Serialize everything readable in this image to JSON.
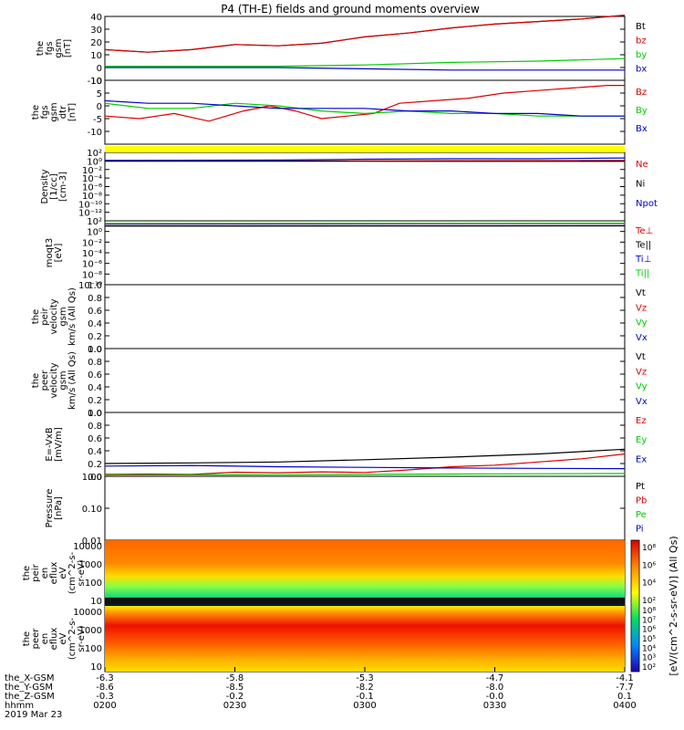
{
  "title": "P4 (TH-E) fields and ground moments overview",
  "colors": {
    "black": "#000000",
    "red": "#dd0000",
    "green": "#00cc00",
    "blue": "#0000cc",
    "yellow": "#ffff00"
  },
  "chart_data": [
    {
      "type": "line",
      "panel": "fgs_gsm",
      "ylabel": [
        "the",
        "fgs",
        "gsm",
        "[nT]"
      ],
      "ylim": [
        -10,
        40
      ],
      "yticks": [
        -10,
        0,
        10,
        20,
        30,
        40
      ],
      "series": [
        {
          "name": "Bt",
          "color": "#000000",
          "values": [
            [
              0,
              14
            ],
            [
              0.5,
              12
            ],
            [
              1,
              14
            ],
            [
              1.5,
              18
            ],
            [
              2,
              17
            ],
            [
              2.5,
              19
            ],
            [
              3,
              24
            ],
            [
              3.5,
              27
            ],
            [
              4,
              31
            ],
            [
              4.5,
              34
            ],
            [
              5,
              36
            ],
            [
              5.5,
              38
            ],
            [
              6,
              41
            ]
          ]
        },
        {
          "name": "bz",
          "color": "#dd0000",
          "values": [
            [
              0,
              14
            ],
            [
              0.5,
              12
            ],
            [
              1,
              14
            ],
            [
              1.5,
              18
            ],
            [
              2,
              17
            ],
            [
              2.5,
              19
            ],
            [
              3,
              24
            ],
            [
              3.5,
              27
            ],
            [
              4,
              31
            ],
            [
              4.5,
              34
            ],
            [
              5,
              36
            ],
            [
              5.5,
              38
            ],
            [
              6,
              41
            ]
          ]
        },
        {
          "name": "by",
          "color": "#00cc00",
          "values": [
            [
              0,
              1
            ],
            [
              1,
              1
            ],
            [
              2,
              1
            ],
            [
              3,
              2
            ],
            [
              4,
              4
            ],
            [
              5,
              5
            ],
            [
              6,
              7
            ]
          ]
        },
        {
          "name": "bx",
          "color": "#0000cc",
          "values": [
            [
              0,
              0
            ],
            [
              1,
              0
            ],
            [
              2,
              0
            ],
            [
              3,
              -1
            ],
            [
              4,
              -2
            ],
            [
              5,
              -2
            ],
            [
              6,
              -2
            ]
          ]
        }
      ]
    },
    {
      "type": "line",
      "panel": "fgs_gsm_detrended",
      "ylabel": [
        "the",
        "fgs",
        "gsm",
        "dtr",
        "[nT]"
      ],
      "ylim": [
        -15,
        10
      ],
      "yticks": [
        -10,
        -5,
        0,
        5,
        10
      ],
      "series": [
        {
          "name": "Bz",
          "color": "#dd0000",
          "values": [
            [
              0,
              -4
            ],
            [
              0.4,
              -5
            ],
            [
              0.8,
              -3
            ],
            [
              1.2,
              -6
            ],
            [
              1.6,
              -2
            ],
            [
              1.9,
              0
            ],
            [
              2.2,
              -2
            ],
            [
              2.5,
              -5
            ],
            [
              2.8,
              -4
            ],
            [
              3.1,
              -3
            ],
            [
              3.4,
              1
            ],
            [
              3.8,
              2
            ],
            [
              4.2,
              3
            ],
            [
              4.6,
              5
            ],
            [
              5.0,
              6
            ],
            [
              5.4,
              7
            ],
            [
              5.8,
              8
            ],
            [
              6,
              8
            ]
          ]
        },
        {
          "name": "By",
          "color": "#00cc00",
          "values": [
            [
              0,
              1
            ],
            [
              0.5,
              -1
            ],
            [
              1,
              -1
            ],
            [
              1.5,
              1
            ],
            [
              2,
              0
            ],
            [
              2.5,
              -2
            ],
            [
              3,
              -3
            ],
            [
              3.5,
              -2
            ],
            [
              4,
              -3
            ],
            [
              4.5,
              -3
            ],
            [
              5,
              -4
            ],
            [
              5.5,
              -4
            ],
            [
              6,
              -4
            ]
          ]
        },
        {
          "name": "Bx",
          "color": "#0000cc",
          "values": [
            [
              0,
              2
            ],
            [
              0.5,
              1
            ],
            [
              1,
              1
            ],
            [
              1.5,
              0
            ],
            [
              2,
              -1
            ],
            [
              2.5,
              -1
            ],
            [
              3,
              -1
            ],
            [
              3.5,
              -2
            ],
            [
              4,
              -2
            ],
            [
              4.5,
              -3
            ],
            [
              5,
              -3
            ],
            [
              5.5,
              -4
            ],
            [
              6,
              -4
            ]
          ]
        }
      ]
    },
    {
      "type": "line",
      "panel": "density",
      "ylabel": [
        "Density",
        "[1/cc]",
        "[cm-3]"
      ],
      "yscale": "log",
      "ylim_exp": [
        -14,
        2
      ],
      "ytick_exps": [
        -12,
        -10,
        -8,
        -6,
        -4,
        -2,
        0,
        2
      ],
      "series": [
        {
          "name": "Ne",
          "color": "#dd0000",
          "values": [
            [
              0,
              0
            ],
            [
              3,
              0
            ],
            [
              4,
              0.05
            ],
            [
              6,
              0.1
            ]
          ]
        },
        {
          "name": "Ni",
          "color": "#000000",
          "values": [
            [
              0,
              -0.05
            ],
            [
              6,
              -0.1
            ]
          ]
        },
        {
          "name": "Npot",
          "color": "#0000cc",
          "values": [
            [
              0,
              0.15
            ],
            [
              2,
              0.2
            ],
            [
              3,
              0.4
            ],
            [
              4,
              0.5
            ],
            [
              5,
              0.5
            ],
            [
              6,
              0.7
            ]
          ]
        }
      ]
    },
    {
      "type": "line",
      "panel": "temperature",
      "ylabel": [
        "moqt3",
        "[eV]"
      ],
      "yscale": "log",
      "ylim_exp": [
        -10,
        2
      ],
      "ytick_exps": [
        -10,
        -8,
        -6,
        -4,
        -2,
        0,
        2
      ],
      "series": [
        {
          "name": "Te⊥",
          "color": "#dd0000",
          "values": [
            [
              0,
              1.1
            ],
            [
              6,
              1.1
            ]
          ]
        },
        {
          "name": "Te||",
          "color": "#000000",
          "values": [
            [
              0,
              1.0
            ],
            [
              6,
              1.05
            ]
          ]
        },
        {
          "name": "Ti⊥",
          "color": "#0000cc",
          "values": [
            [
              0,
              1.4
            ],
            [
              6,
              1.5
            ]
          ]
        },
        {
          "name": "Ti||",
          "color": "#00cc00",
          "values": [
            [
              0,
              1.5
            ],
            [
              6,
              1.55
            ]
          ]
        }
      ]
    },
    {
      "type": "line",
      "panel": "peir_velocity",
      "ylabel": [
        "the",
        "peir",
        "velocity",
        "gsm",
        "km/s (All Qs)"
      ],
      "ylim": [
        0,
        1
      ],
      "yticks": [
        0,
        0.2,
        0.4,
        0.6,
        0.8,
        1.0
      ],
      "legend": [
        "Vt",
        "Vz",
        "Vy",
        "Vx"
      ]
    },
    {
      "type": "line",
      "panel": "peer_velocity",
      "ylabel": [
        "the",
        "peer",
        "velocity",
        "gsm",
        "km/s (All Qs)"
      ],
      "ylim": [
        0,
        1
      ],
      "yticks": [
        0,
        0.2,
        0.4,
        0.6,
        0.8,
        1.0
      ],
      "legend": [
        "Vt",
        "Vz",
        "Vy",
        "Vx"
      ]
    },
    {
      "type": "line",
      "panel": "efield",
      "ylabel": [
        "E=-VxB",
        "[mV/m]"
      ],
      "ylim": [
        0,
        1
      ],
      "yticks": [
        0,
        0.2,
        0.4,
        0.6,
        0.8,
        1.0
      ],
      "legend": [
        "Ez",
        "Ey",
        "Ex"
      ]
    },
    {
      "type": "line",
      "panel": "pressure",
      "ylabel": [
        "Pressure",
        "[nPa]"
      ],
      "yscale": "log",
      "ylim_exp": [
        -2,
        0
      ],
      "yticks": [
        "0.01",
        "0.10",
        "1.00"
      ],
      "series": [
        {
          "name": "Pt",
          "color": "#000000",
          "values": [
            [
              0,
              0.4
            ],
            [
              1,
              0.42
            ],
            [
              2,
              0.45
            ],
            [
              3,
              0.52
            ],
            [
              4,
              0.6
            ],
            [
              5,
              0.7
            ],
            [
              6,
              0.85
            ]
          ]
        },
        {
          "name": "Pb",
          "color": "#dd0000",
          "values": [
            [
              0,
              0.06
            ],
            [
              0.5,
              0.07
            ],
            [
              1,
              0.06
            ],
            [
              1.5,
              0.13
            ],
            [
              2,
              0.11
            ],
            [
              2.5,
              0.14
            ],
            [
              3,
              0.12
            ],
            [
              3.5,
              0.2
            ],
            [
              4,
              0.3
            ],
            [
              4.5,
              0.35
            ],
            [
              5,
              0.45
            ],
            [
              5.5,
              0.55
            ],
            [
              6,
              0.7
            ]
          ]
        },
        {
          "name": "Pe",
          "color": "#00cc00",
          "values": [
            [
              0,
              0.04
            ],
            [
              1,
              0.045
            ],
            [
              2,
              0.05
            ],
            [
              3,
              0.06
            ],
            [
              4,
              0.07
            ],
            [
              5,
              0.08
            ],
            [
              6,
              0.09
            ]
          ]
        },
        {
          "name": "Pi",
          "color": "#0000cc",
          "values": [
            [
              0,
              0.32
            ],
            [
              1,
              0.34
            ],
            [
              2,
              0.3
            ],
            [
              3,
              0.28
            ],
            [
              4,
              0.26
            ],
            [
              5,
              0.25
            ],
            [
              6,
              0.24
            ]
          ]
        }
      ]
    },
    {
      "type": "heatmap",
      "panel": "peir_en_eflux",
      "ylabel": [
        "the",
        "peir",
        "en",
        "eflux",
        "eV",
        "(cm^2-s-",
        "sr-eV)"
      ],
      "yticks": [
        "10",
        "100",
        "1000",
        "10000"
      ]
    },
    {
      "type": "heatmap",
      "panel": "peer_en_eflux",
      "ylabel": [
        "the",
        "peer",
        "en",
        "eflux",
        "eV",
        "(cm^2-s-",
        "sr-eV)"
      ],
      "yticks": [
        "10",
        "100",
        "1000",
        "10000"
      ]
    }
  ],
  "colorbar": {
    "label": "[eV/(cm^2-s-sr-eV)] (All Qs)",
    "peir_ticks": [
      "10^2",
      "10^4",
      "10^6",
      "10^8"
    ],
    "peer_ticks": [
      "10^2",
      "10^3",
      "10^4",
      "10^5",
      "10^6",
      "10^7",
      "10^8"
    ]
  },
  "xaxis": {
    "rows": [
      {
        "label": "the_X-GSM",
        "values": [
          "-6.3",
          "-5.8",
          "-5.3",
          "-4.7",
          "-4.1"
        ]
      },
      {
        "label": "the_Y-GSM",
        "values": [
          "-8.6",
          "-8.5",
          "-8.2",
          "-8.0",
          "-7.7"
        ]
      },
      {
        "label": "the_Z-GSM",
        "values": [
          "-0.3",
          "-0.2",
          "-0.1",
          "-0.0",
          "0.1"
        ]
      },
      {
        "label": "hhmm",
        "values": [
          "0200",
          "0230",
          "0300",
          "0330",
          "0400"
        ]
      }
    ],
    "date": "2019 Mar 23"
  }
}
